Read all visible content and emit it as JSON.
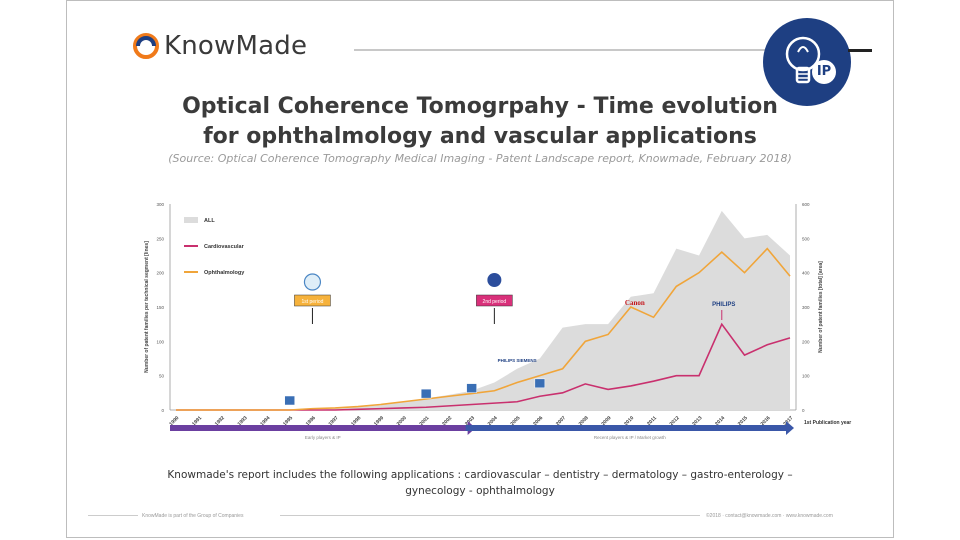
{
  "header": {
    "logo_text": "KnowMade",
    "badge_text": "IP",
    "title_line1": "Optical Coherence Tomogrpahy - Time evolution",
    "title_line2": "for ophthalmology and vascular applications",
    "source": "(Source: Optical Coherence Tomography Medical Imaging - Patent Landscape report, Knowmade, February 2018)"
  },
  "colors": {
    "badge_blue": "#1e3f82",
    "all_area": "#dcdcdc",
    "cardiovascular": "#c9306e",
    "ophthalmology": "#f0a53a",
    "phase1_arrow": "#6b3fa0",
    "phase2_arrow": "#3a57a8"
  },
  "applications_text": "Knowmade's report includes the following applications : cardiovascular – dentistry – dermatology – gastro-enterology – gynecology - ophthalmology",
  "footer": {
    "left": "KnowMade is part of the Group of Companies",
    "right": "©2018 · contact@knowmade.com · www.knowmade.com"
  },
  "chart_data": {
    "type": "area",
    "x": [
      "1990",
      "1991",
      "1992",
      "1993",
      "1994",
      "1995",
      "1996",
      "1997",
      "1998",
      "1999",
      "2000",
      "2001",
      "2002",
      "2003",
      "2004",
      "2005",
      "2006",
      "2007",
      "2008",
      "2009",
      "2010",
      "2011",
      "2012",
      "2013",
      "2014",
      "2015",
      "2016",
      "2017"
    ],
    "ylim": [
      0,
      300
    ],
    "yticks": [
      0,
      50,
      100,
      150,
      200,
      250,
      300
    ],
    "ylabel": "Number of patent families per technical segment [lines]",
    "y2lim": [
      0,
      600
    ],
    "y2ticks": [
      0,
      100,
      200,
      300,
      400,
      500,
      600
    ],
    "y2label": "Number of patent families [total] [area]",
    "xlabel_right": "1st Publication year",
    "series": [
      {
        "name": "ALL",
        "kind": "area",
        "axis": "right",
        "values": [
          0,
          0,
          0,
          0,
          0,
          0,
          0,
          4,
          8,
          14,
          24,
          34,
          44,
          56,
          80,
          120,
          150,
          240,
          250,
          250,
          330,
          340,
          470,
          450,
          580,
          500,
          510,
          450
        ]
      },
      {
        "name": "Cardiovascular",
        "kind": "line",
        "axis": "left",
        "values": [
          0,
          0,
          0,
          0,
          0,
          0,
          0,
          0,
          1,
          2,
          3,
          4,
          6,
          8,
          10,
          12,
          20,
          25,
          38,
          30,
          35,
          42,
          50,
          50,
          125,
          80,
          95,
          105
        ]
      },
      {
        "name": "Ophthalmology",
        "kind": "line",
        "axis": "left",
        "values": [
          0,
          0,
          0,
          0,
          0,
          0,
          2,
          3,
          5,
          8,
          12,
          16,
          20,
          24,
          28,
          40,
          50,
          60,
          100,
          110,
          150,
          135,
          180,
          200,
          230,
          200,
          235,
          195
        ]
      }
    ],
    "annotations": [
      {
        "label": "1st period",
        "x": "1996"
      },
      {
        "label": "2nd period",
        "x": "2004"
      },
      {
        "label": "Canon",
        "x": "2010"
      },
      {
        "label": "PHILIPS",
        "x": "2014"
      },
      {
        "label": "PHILIPS SIEMENS",
        "x": "2005"
      }
    ],
    "phases": [
      {
        "label": "Early players & IP",
        "from": "1990",
        "to": "2003"
      },
      {
        "label": "Recent players & IP / Market growth",
        "from": "2003",
        "to": "2017"
      }
    ]
  }
}
